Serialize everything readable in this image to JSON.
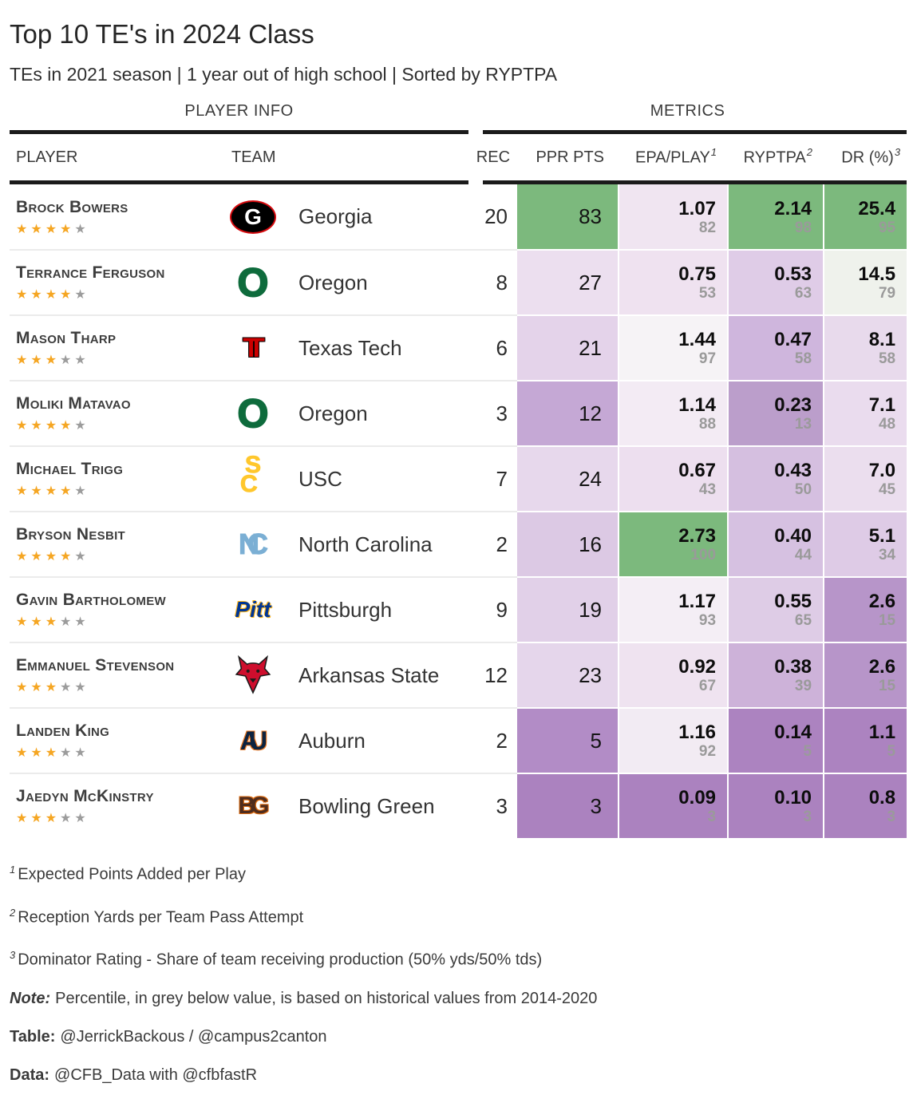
{
  "header": {
    "title": "Top 10 TE's in 2024 Class",
    "subtitle": "TEs in 2021 season | 1 year out of high school | Sorted by RYPTPA"
  },
  "spanners": {
    "player_info": "PLAYER INFO",
    "metrics": "METRICS"
  },
  "columns": {
    "player": "PLAYER",
    "team": "TEAM",
    "rec": "REC",
    "ppr": "PPR PTS",
    "epa": "EPA/PLAY",
    "epa_sup": "1",
    "ryptpa": "RYPTPA",
    "ryptpa_sup": "2",
    "dr": "DR (%)",
    "dr_sup": "3"
  },
  "color_scale": {
    "high": "#7CB97D",
    "mid": "#F7F7F7",
    "low": "#AB82BF",
    "star_gold": "#F5A623",
    "star_grey": "#9C9C9C",
    "percentile_grey": "#9A9A9A"
  },
  "chart_data": {
    "type": "table",
    "title": "Top 10 TE's in 2024 Class",
    "subtitle": "TEs in 2021 season | 1 year out of high school | Sorted by RYPTPA",
    "columns": [
      "PLAYER",
      "TEAM",
      "REC",
      "PPR PTS",
      "EPA/PLAY",
      "RYPTPA",
      "DR (%)"
    ],
    "rows": [
      {
        "player": "Brock Bowers",
        "stars_gold": 4,
        "stars_grey": 1,
        "team": "Georgia",
        "logo": "georgia",
        "rec": "20",
        "ppr": {
          "v": "83",
          "bg": "#7CB97D"
        },
        "epa": {
          "v": "1.07",
          "p": "82",
          "bg": "#F0E5F1"
        },
        "ryptpa": {
          "v": "2.14",
          "p": "98",
          "bg": "#7CB97D"
        },
        "dr": {
          "v": "25.4",
          "p": "95",
          "bg": "#7CB97D"
        }
      },
      {
        "player": "Terrance Ferguson",
        "stars_gold": 4,
        "stars_grey": 1,
        "team": "Oregon",
        "logo": "oregon",
        "rec": "8",
        "ppr": {
          "v": "27",
          "bg": "#ECDFEF"
        },
        "epa": {
          "v": "0.75",
          "p": "53",
          "bg": "#EFE2F0"
        },
        "ryptpa": {
          "v": "0.53",
          "p": "63",
          "bg": "#DFCCE7"
        },
        "dr": {
          "v": "14.5",
          "p": "79",
          "bg": "#EFF2EC"
        }
      },
      {
        "player": "Mason Tharp",
        "stars_gold": 3,
        "stars_grey": 2,
        "team": "Texas Tech",
        "logo": "texastech",
        "rec": "6",
        "ppr": {
          "v": "21",
          "bg": "#E4D3EA"
        },
        "epa": {
          "v": "1.44",
          "p": "97",
          "bg": "#F6F3F6"
        },
        "ryptpa": {
          "v": "0.47",
          "p": "58",
          "bg": "#CFB6DD"
        },
        "dr": {
          "v": "8.1",
          "p": "58",
          "bg": "#E8DAEC"
        }
      },
      {
        "player": "Moliki Matavao",
        "stars_gold": 4,
        "stars_grey": 1,
        "team": "Oregon",
        "logo": "oregon",
        "rec": "3",
        "ppr": {
          "v": "12",
          "bg": "#C5A8D5"
        },
        "epa": {
          "v": "1.14",
          "p": "88",
          "bg": "#F3EBF4"
        },
        "ryptpa": {
          "v": "0.23",
          "p": "13",
          "bg": "#BB9ECB"
        },
        "dr": {
          "v": "7.1",
          "p": "48",
          "bg": "#EADCEE"
        }
      },
      {
        "player": "Michael Trigg",
        "stars_gold": 4,
        "stars_grey": 1,
        "team": "USC",
        "logo": "usc",
        "rec": "7",
        "ppr": {
          "v": "24",
          "bg": "#E7D8EC"
        },
        "epa": {
          "v": "0.67",
          "p": "43",
          "bg": "#EDDFEF"
        },
        "ryptpa": {
          "v": "0.43",
          "p": "50",
          "bg": "#D5BFE0"
        },
        "dr": {
          "v": "7.0",
          "p": "45",
          "bg": "#EBDEEE"
        }
      },
      {
        "player": "Bryson Nesbit",
        "stars_gold": 4,
        "stars_grey": 1,
        "team": "North Carolina",
        "logo": "unc",
        "rec": "2",
        "ppr": {
          "v": "16",
          "bg": "#DCC9E4"
        },
        "epa": {
          "v": "2.73",
          "p": "100",
          "bg": "#7CB97D"
        },
        "ryptpa": {
          "v": "0.40",
          "p": "44",
          "bg": "#D6C1E1"
        },
        "dr": {
          "v": "5.1",
          "p": "34",
          "bg": "#DECBE6"
        }
      },
      {
        "player": "Gavin Bartholomew",
        "stars_gold": 3,
        "stars_grey": 2,
        "team": "Pittsburgh",
        "logo": "pitt",
        "rec": "9",
        "ppr": {
          "v": "19",
          "bg": "#E1D0E8"
        },
        "epa": {
          "v": "1.17",
          "p": "93",
          "bg": "#F4EEF5"
        },
        "ryptpa": {
          "v": "0.55",
          "p": "65",
          "bg": "#DECCE6"
        },
        "dr": {
          "v": "2.6",
          "p": "15",
          "bg": "#B795C9"
        }
      },
      {
        "player": "Emmanuel Stevenson",
        "stars_gold": 3,
        "stars_grey": 2,
        "team": "Arkansas State",
        "logo": "arkansasstate",
        "rec": "12",
        "ppr": {
          "v": "23",
          "bg": "#E5D6EB"
        },
        "epa": {
          "v": "0.92",
          "p": "67",
          "bg": "#EFE3F0"
        },
        "ryptpa": {
          "v": "0.38",
          "p": "39",
          "bg": "#CDB2D9"
        },
        "dr": {
          "v": "2.6",
          "p": "15",
          "bg": "#B795C9"
        }
      },
      {
        "player": "Landen King",
        "stars_gold": 3,
        "stars_grey": 2,
        "team": "Auburn",
        "logo": "auburn",
        "rec": "2",
        "ppr": {
          "v": "5",
          "bg": "#B28CC6"
        },
        "epa": {
          "v": "1.16",
          "p": "92",
          "bg": "#F2EBF3"
        },
        "ryptpa": {
          "v": "0.14",
          "p": "5",
          "bg": "#AC83C0"
        },
        "dr": {
          "v": "1.1",
          "p": "5",
          "bg": "#AC83C0"
        }
      },
      {
        "player": "Jaedyn McKinstry",
        "stars_gold": 3,
        "stars_grey": 2,
        "team": "Bowling Green",
        "logo": "bgsu",
        "rec": "3",
        "ppr": {
          "v": "3",
          "bg": "#AB82BF"
        },
        "epa": {
          "v": "0.09",
          "p": "3",
          "bg": "#AB82BF"
        },
        "ryptpa": {
          "v": "0.10",
          "p": "3",
          "bg": "#AB82BF"
        },
        "dr": {
          "v": "0.8",
          "p": "3",
          "bg": "#AB82BF"
        }
      }
    ]
  },
  "footnotes": [
    {
      "sup": "1",
      "text": "Expected Points Added per Play"
    },
    {
      "sup": "2",
      "text": "Reception Yards per Team Pass Attempt"
    },
    {
      "sup": "3",
      "text": "Dominator Rating - Share of team receiving production (50% yds/50% tds)"
    }
  ],
  "credits": {
    "note": {
      "label": "Note:",
      "text": "Percentile, in grey below value, is based on historical values from 2014-2020"
    },
    "table": {
      "label": "Table:",
      "text": "@JerrickBackous / @campus2canton"
    },
    "data": {
      "label": "Data:",
      "text": "@CFB_Data with @cfbfastR"
    }
  }
}
